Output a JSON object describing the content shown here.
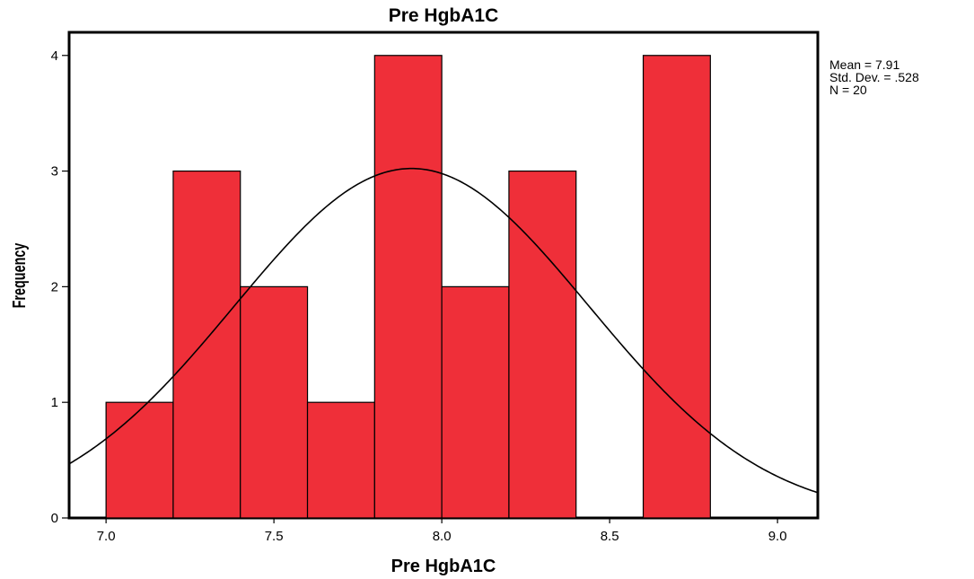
{
  "chart_data": {
    "type": "bar",
    "title": "Pre HgbA1C",
    "xlabel": "Pre HgbA1C",
    "ylabel": "Frequency",
    "bins": [
      {
        "start": 7.0,
        "end": 7.2,
        "count": 1
      },
      {
        "start": 7.2,
        "end": 7.4,
        "count": 3
      },
      {
        "start": 7.4,
        "end": 7.6,
        "count": 2
      },
      {
        "start": 7.6,
        "end": 7.8,
        "count": 1
      },
      {
        "start": 7.8,
        "end": 8.0,
        "count": 4
      },
      {
        "start": 8.0,
        "end": 8.2,
        "count": 2
      },
      {
        "start": 8.2,
        "end": 8.4,
        "count": 3
      },
      {
        "start": 8.4,
        "end": 8.6,
        "count": 0
      },
      {
        "start": 8.6,
        "end": 8.8,
        "count": 4
      }
    ],
    "xlim": [
      6.89,
      9.12
    ],
    "ylim": [
      0,
      4.2
    ],
    "x_ticks": [
      {
        "value": 7.0,
        "label": "7.0"
      },
      {
        "value": 7.5,
        "label": "7.5"
      },
      {
        "value": 8.0,
        "label": "8.0"
      },
      {
        "value": 8.5,
        "label": "8.5"
      },
      {
        "value": 9.0,
        "label": "9.0"
      }
    ],
    "y_ticks": [
      {
        "value": 0,
        "label": "0"
      },
      {
        "value": 1,
        "label": "1"
      },
      {
        "value": 2,
        "label": "2"
      },
      {
        "value": 3,
        "label": "3"
      },
      {
        "value": 4,
        "label": "4"
      }
    ],
    "normal_curve": {
      "mean": 7.91,
      "std": 0.528,
      "n": 20,
      "bin_width": 0.2
    },
    "stats": {
      "mean_text": "Mean = 7.91",
      "std_text": "Std. Dev. = .528",
      "n_text": "N = 20"
    },
    "bar_color": "#ef2f39",
    "bar_edge_color": "#000000",
    "curve_color": "#000000",
    "grid": false,
    "legend": "none"
  }
}
